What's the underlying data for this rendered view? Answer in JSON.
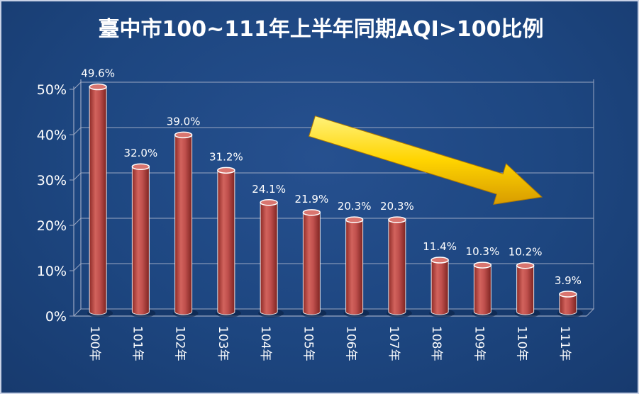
{
  "chart_data": {
    "type": "bar",
    "title": "臺中市100~111年上半年同期AQI>100比例",
    "categories": [
      "100年",
      "101年",
      "102年",
      "103年",
      "104年",
      "105年",
      "106年",
      "107年",
      "108年",
      "109年",
      "110年",
      "111年"
    ],
    "values": [
      49.6,
      32.0,
      39.0,
      31.2,
      24.1,
      21.9,
      20.3,
      20.3,
      11.4,
      10.3,
      10.2,
      3.9
    ],
    "value_labels": [
      "49.6%",
      "32.0%",
      "39.0%",
      "31.2%",
      "24.1%",
      "21.9%",
      "20.3%",
      "20.3%",
      "11.4%",
      "10.3%",
      "10.2%",
      "3.9%"
    ],
    "yticks": [
      0,
      10,
      20,
      30,
      40,
      50
    ],
    "ytick_labels": [
      "0%",
      "10%",
      "20%",
      "30%",
      "40%",
      "50%"
    ],
    "ylim": [
      0,
      50
    ],
    "grid": true,
    "legend": "none",
    "annotation": "yellow-downward-trend-arrow"
  },
  "colors": {
    "background": "#1d4680",
    "bar": "#c0504d",
    "bar_top": "#d9756f",
    "grid": "#9aa7c2",
    "arrow": "#ffd400",
    "text": "#ffffff"
  }
}
